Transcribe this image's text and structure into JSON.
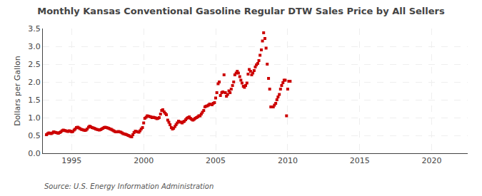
{
  "chart_data": {
    "type": "scatter",
    "title": "Monthly Kansas Conventional Gasoline Regular DTW Sales Price by All Sellers",
    "ylabel": "Dollars per Gallon",
    "annotations": [
      "Source: U.S. Energy Information Administration"
    ],
    "color": "#cc0000",
    "marker": "square",
    "grid": true,
    "xlim": [
      1993.0,
      2022.5
    ],
    "ylim": [
      0.0,
      3.5
    ],
    "xticks": [
      1995,
      2000,
      2005,
      2010,
      2015,
      2020
    ],
    "yticks": [
      {
        "value": 0.0,
        "label": "0.0"
      },
      0.5,
      {
        "value": 1.0,
        "label": "1.0"
      },
      1.5,
      {
        "value": 2.0,
        "label": "2.0"
      },
      2.5,
      {
        "value": 3.0,
        "label": "3.0"
      },
      3.5
    ],
    "x": [
      1993.25,
      1993.33,
      1993.42,
      1993.5,
      1993.58,
      1993.67,
      1993.75,
      1993.83,
      1993.92,
      1994.0,
      1994.08,
      1994.17,
      1994.25,
      1994.33,
      1994.42,
      1994.5,
      1994.58,
      1994.67,
      1994.75,
      1994.83,
      1994.92,
      1995.0,
      1995.08,
      1995.17,
      1995.25,
      1995.33,
      1995.42,
      1995.5,
      1995.58,
      1995.67,
      1995.75,
      1995.83,
      1995.92,
      1996.0,
      1996.08,
      1996.17,
      1996.25,
      1996.33,
      1996.42,
      1996.5,
      1996.58,
      1996.67,
      1996.75,
      1996.83,
      1996.92,
      1997.0,
      1997.08,
      1997.17,
      1997.25,
      1997.33,
      1997.42,
      1997.5,
      1997.58,
      1997.67,
      1997.75,
      1997.83,
      1997.92,
      1998.0,
      1998.08,
      1998.17,
      1998.25,
      1998.33,
      1998.42,
      1998.5,
      1998.58,
      1998.67,
      1998.75,
      1998.83,
      1998.92,
      1999.0,
      1999.08,
      1999.17,
      1999.25,
      1999.33,
      1999.42,
      1999.5,
      1999.58,
      1999.67,
      1999.75,
      1999.83,
      1999.92,
      2000.0,
      2000.08,
      2000.17,
      2000.25,
      2000.33,
      2000.42,
      2000.5,
      2000.58,
      2000.67,
      2000.75,
      2000.83,
      2000.92,
      2001.0,
      2001.08,
      2001.17,
      2001.25,
      2001.33,
      2001.42,
      2001.5,
      2001.58,
      2001.67,
      2001.75,
      2001.83,
      2001.92,
      2002.0,
      2002.08,
      2002.17,
      2002.25,
      2002.33,
      2002.42,
      2002.5,
      2002.58,
      2002.67,
      2002.75,
      2002.83,
      2002.92,
      2003.0,
      2003.08,
      2003.17,
      2003.25,
      2003.33,
      2003.42,
      2003.5,
      2003.58,
      2003.67,
      2003.75,
      2003.83,
      2003.92,
      2004.0,
      2004.08,
      2004.17,
      2004.25,
      2004.33,
      2004.42,
      2004.5,
      2004.58,
      2004.67,
      2004.75,
      2004.83,
      2004.92,
      2005.0,
      2005.08,
      2005.17,
      2005.25,
      2005.33,
      2005.42,
      2005.5,
      2005.58,
      2005.67,
      2005.75,
      2005.83,
      2005.92,
      2006.0,
      2006.08,
      2006.17,
      2006.25,
      2006.33,
      2006.42,
      2006.5,
      2006.58,
      2006.67,
      2006.75,
      2006.83,
      2006.92,
      2007.0,
      2007.08,
      2007.17,
      2007.25,
      2007.33,
      2007.42,
      2007.5,
      2007.58,
      2007.67,
      2007.75,
      2007.83,
      2007.92,
      2008.0,
      2008.08,
      2008.17,
      2008.25,
      2008.33,
      2008.42,
      2008.5,
      2008.58,
      2008.67,
      2008.75,
      2008.83,
      2009.0,
      2009.08,
      2009.17,
      2009.25,
      2009.33,
      2009.42,
      2009.5,
      2009.58,
      2009.67,
      2009.75,
      2009.83,
      2009.92,
      2010.0,
      2010.08,
      2010.17
    ],
    "values": [
      0.52,
      0.55,
      0.57,
      0.56,
      0.55,
      0.57,
      0.6,
      0.59,
      0.58,
      0.57,
      0.56,
      0.58,
      0.6,
      0.63,
      0.65,
      0.64,
      0.63,
      0.62,
      0.61,
      0.63,
      0.62,
      0.6,
      0.61,
      0.65,
      0.68,
      0.72,
      0.73,
      0.71,
      0.69,
      0.67,
      0.66,
      0.65,
      0.64,
      0.65,
      0.68,
      0.73,
      0.76,
      0.74,
      0.72,
      0.71,
      0.7,
      0.68,
      0.67,
      0.66,
      0.65,
      0.66,
      0.68,
      0.7,
      0.72,
      0.73,
      0.72,
      0.71,
      0.7,
      0.68,
      0.67,
      0.65,
      0.63,
      0.61,
      0.6,
      0.6,
      0.61,
      0.6,
      0.59,
      0.57,
      0.55,
      0.54,
      0.53,
      0.52,
      0.5,
      0.49,
      0.47,
      0.46,
      0.52,
      0.58,
      0.62,
      0.61,
      0.6,
      0.59,
      0.63,
      0.68,
      0.72,
      0.85,
      0.98,
      1.01,
      1.05,
      1.04,
      1.03,
      1.02,
      1.0,
      1.01,
      1.0,
      0.99,
      0.97,
      0.98,
      1.0,
      1.1,
      1.2,
      1.22,
      1.16,
      1.12,
      1.08,
      0.93,
      0.87,
      0.8,
      0.72,
      0.68,
      0.7,
      0.75,
      0.8,
      0.85,
      0.9,
      0.88,
      0.87,
      0.85,
      0.88,
      0.9,
      0.94,
      0.98,
      1.0,
      1.02,
      0.98,
      0.95,
      0.93,
      0.95,
      0.98,
      1.0,
      1.02,
      1.05,
      1.05,
      1.1,
      1.15,
      1.2,
      1.3,
      1.32,
      1.33,
      1.35,
      1.38,
      1.37,
      1.36,
      1.4,
      1.42,
      1.55,
      1.7,
      1.95,
      2.0,
      1.62,
      1.7,
      1.72,
      2.2,
      1.7,
      1.6,
      1.65,
      1.75,
      1.7,
      1.8,
      1.9,
      2.0,
      2.2,
      2.25,
      2.3,
      2.25,
      2.15,
      2.05,
      1.97,
      1.88,
      1.85,
      1.9,
      1.97,
      2.22,
      2.35,
      2.3,
      2.2,
      2.25,
      2.32,
      2.42,
      2.48,
      2.52,
      2.6,
      2.75,
      2.9,
      3.15,
      3.38,
      3.22,
      2.95,
      2.5,
      2.1,
      1.8,
      1.3,
      1.3,
      1.35,
      1.4,
      1.5,
      1.58,
      1.65,
      1.8,
      1.9,
      1.98,
      2.05,
      2.05,
      1.05,
      1.8,
      2.02,
      2.02
    ]
  }
}
